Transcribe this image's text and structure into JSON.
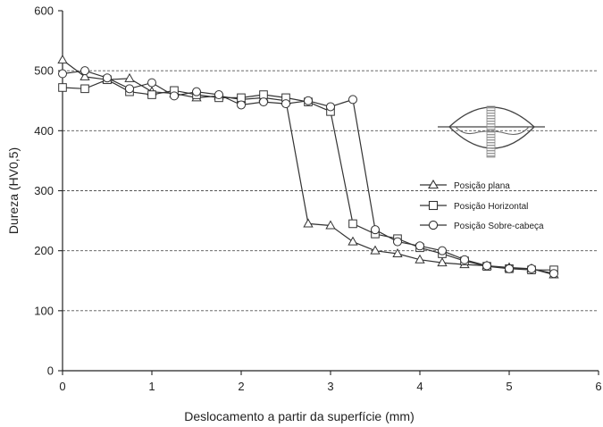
{
  "chart_data": {
    "type": "line",
    "xlabel": "Deslocamento a partir da superfície (mm)",
    "ylabel": "Dureza (HV0,5)",
    "xlim": [
      0,
      6
    ],
    "ylim": [
      0,
      600
    ],
    "xticks": [
      "0",
      "1",
      "2",
      "3",
      "4",
      "5",
      "6"
    ],
    "yticks": [
      "0",
      "100",
      "200",
      "300",
      "400",
      "500",
      "600"
    ],
    "grid": "horizontal dashed",
    "legend_position": "top-right",
    "series": [
      {
        "name": "Posição plana",
        "marker": "triangle",
        "points": [
          [
            0,
            518
          ],
          [
            0.25,
            490
          ],
          [
            0.5,
            485
          ],
          [
            0.75,
            487
          ],
          [
            1,
            465
          ],
          [
            1.25,
            462
          ],
          [
            1.5,
            455
          ],
          [
            1.75,
            458
          ],
          [
            2,
            452
          ],
          [
            2.25,
            455
          ],
          [
            2.5,
            450
          ],
          [
            2.75,
            245
          ],
          [
            3,
            242
          ],
          [
            3.25,
            215
          ],
          [
            3.5,
            200
          ],
          [
            3.75,
            195
          ],
          [
            4,
            185
          ],
          [
            4.25,
            180
          ],
          [
            4.5,
            177
          ],
          [
            4.75,
            175
          ],
          [
            5,
            172
          ],
          [
            5.25,
            170
          ],
          [
            5.5,
            160
          ]
        ]
      },
      {
        "name": "Posição Horizontal",
        "marker": "square",
        "points": [
          [
            0,
            472
          ],
          [
            0.25,
            470
          ],
          [
            0.5,
            485
          ],
          [
            0.75,
            465
          ],
          [
            1,
            460
          ],
          [
            1.25,
            467
          ],
          [
            1.5,
            460
          ],
          [
            1.75,
            455
          ],
          [
            2,
            455
          ],
          [
            2.25,
            460
          ],
          [
            2.5,
            455
          ],
          [
            2.75,
            448
          ],
          [
            3,
            432
          ],
          [
            3.25,
            245
          ],
          [
            3.5,
            228
          ],
          [
            3.75,
            220
          ],
          [
            4,
            205
          ],
          [
            4.25,
            195
          ],
          [
            4.5,
            183
          ],
          [
            4.75,
            174
          ],
          [
            5,
            170
          ],
          [
            5.25,
            168
          ],
          [
            5.5,
            168
          ]
        ]
      },
      {
        "name": "Posição Sobre-cabeça",
        "marker": "circle",
        "points": [
          [
            0,
            495
          ],
          [
            0.25,
            500
          ],
          [
            0.5,
            488
          ],
          [
            0.75,
            470
          ],
          [
            1,
            480
          ],
          [
            1.25,
            458
          ],
          [
            1.5,
            465
          ],
          [
            1.75,
            460
          ],
          [
            2,
            443
          ],
          [
            2.25,
            448
          ],
          [
            2.5,
            445
          ],
          [
            2.75,
            450
          ],
          [
            3,
            440
          ],
          [
            3.25,
            452
          ],
          [
            3.5,
            235
          ],
          [
            3.75,
            215
          ],
          [
            4,
            208
          ],
          [
            4.25,
            200
          ],
          [
            4.5,
            185
          ],
          [
            4.75,
            175
          ],
          [
            5,
            170
          ],
          [
            5.25,
            170
          ],
          [
            5.5,
            162
          ]
        ]
      }
    ]
  },
  "colors": {
    "line": "#333333",
    "marker_fill": "#ffffff",
    "grid": "#555555"
  }
}
